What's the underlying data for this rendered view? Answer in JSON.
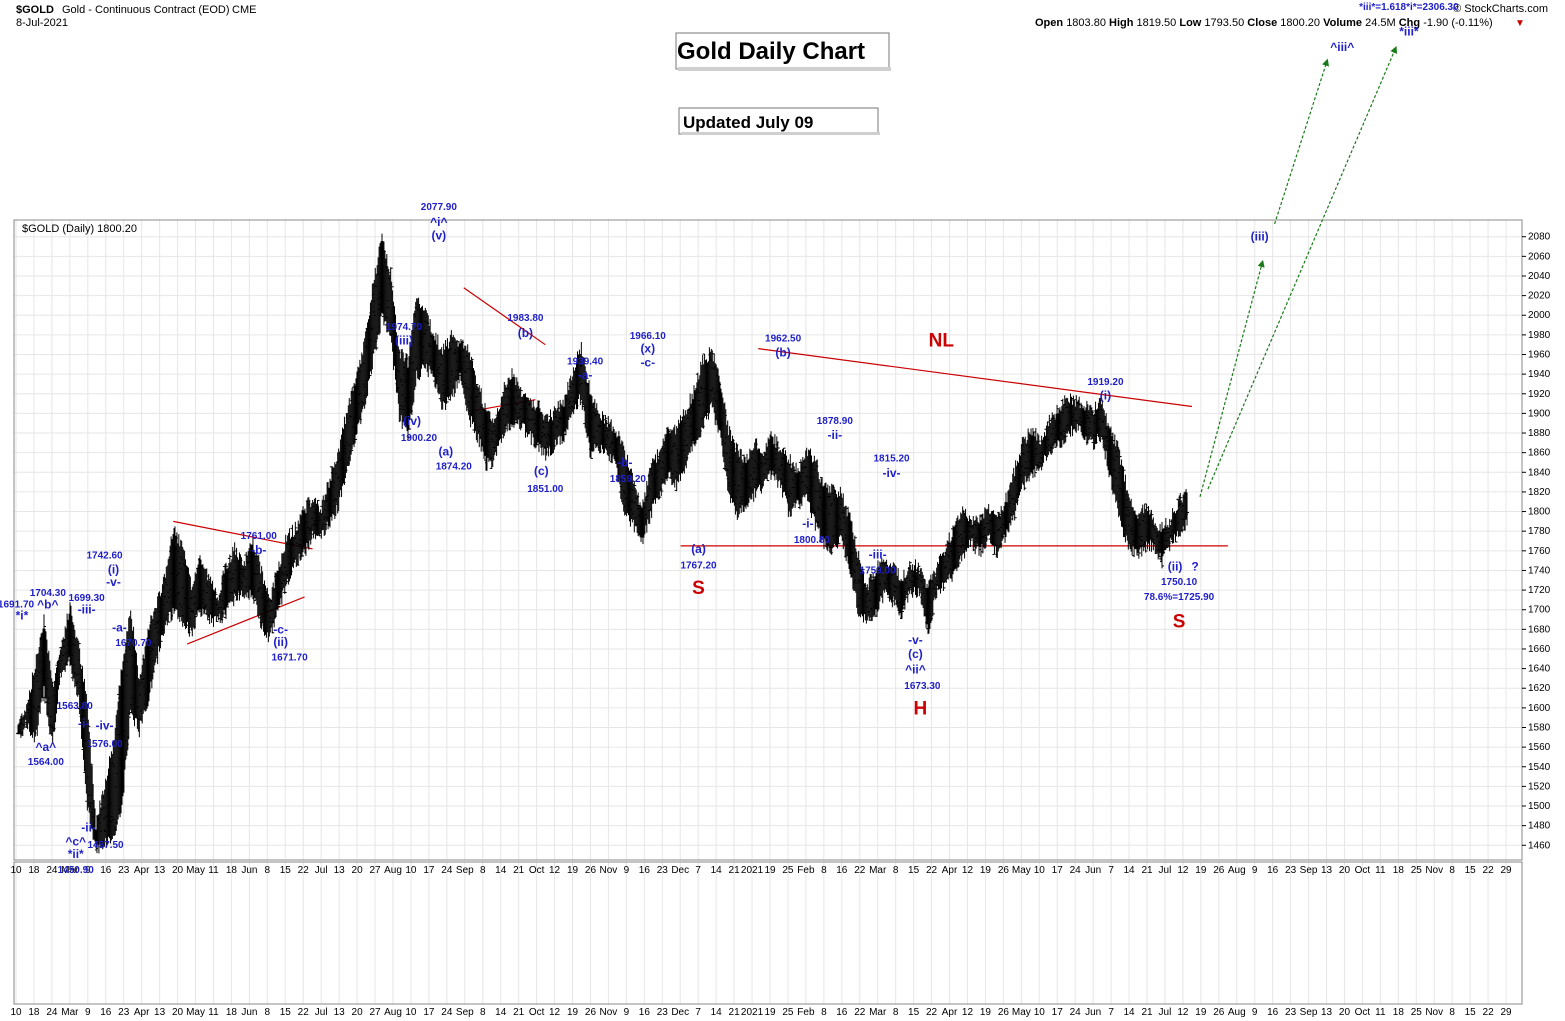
{
  "header": {
    "symbol": "$GOLD",
    "description": "Gold - Continuous Contract (EOD)",
    "exchange": "CME",
    "date": "8-Jul-2021",
    "watermark": "© StockCharts.com",
    "ohlc": [
      {
        "label": "Open",
        "value": "1803.80"
      },
      {
        "label": "High",
        "value": "1819.50"
      },
      {
        "label": "Low",
        "value": "1793.50"
      },
      {
        "label": "Close",
        "value": "1800.20"
      },
      {
        "label": "Volume",
        "value": "24.5M"
      },
      {
        "label": "Chg",
        "value": "-1.90 (-0.11%)"
      }
    ],
    "change_marker": "▼",
    "legend": "$GOLD (Daily) 1800.20"
  },
  "boxes": {
    "title": "Gold Daily Chart",
    "updated": "Updated July 09"
  },
  "colors": {
    "price": "#000000",
    "wave_label": "#1f1fc8",
    "trendline": "#cc0000",
    "projection": "#1a7a1a",
    "grid": "#e6e6e6"
  },
  "chart_data": {
    "type": "ohlc",
    "ylim": [
      1445,
      2095
    ],
    "y_ticks": [
      1460,
      1480,
      1500,
      1520,
      1540,
      1560,
      1580,
      1600,
      1620,
      1640,
      1660,
      1680,
      1700,
      1720,
      1740,
      1760,
      1780,
      1800,
      1820,
      1840,
      1860,
      1880,
      1900,
      1920,
      1940,
      1960,
      1980,
      2000,
      2020,
      2040,
      2060,
      2080
    ],
    "x_ticks": [
      "10",
      "18",
      "24",
      "Mar",
      "9",
      "16",
      "23",
      "Apr",
      "13",
      "20",
      "May",
      "11",
      "18",
      "Jun",
      "8",
      "15",
      "22",
      "Jul",
      "13",
      "20",
      "27",
      "Aug",
      "10",
      "17",
      "24",
      "Sep",
      "8",
      "14",
      "21",
      "Oct",
      "12",
      "19",
      "26",
      "Nov",
      "9",
      "16",
      "23",
      "Dec",
      "7",
      "14",
      "21",
      "2021",
      "19",
      "25",
      "Feb",
      "8",
      "16",
      "22",
      "Mar",
      "8",
      "15",
      "22",
      "Apr",
      "12",
      "19",
      "26",
      "May",
      "10",
      "17",
      "24",
      "Jun",
      "7",
      "14",
      "21",
      "Jul",
      "12",
      "19",
      "26",
      "Aug",
      "9",
      "16",
      "23",
      "Sep",
      "13",
      "20",
      "Oct",
      "11",
      "18",
      "25",
      "Nov",
      "8",
      "15",
      "22",
      "29"
    ],
    "price_path": [
      [
        1580,
        1575
      ],
      [
        1600,
        1585
      ],
      [
        1640,
        1570
      ],
      [
        1690,
        1620
      ],
      [
        1620,
        1565
      ],
      [
        1660,
        1640
      ],
      [
        1700,
        1650
      ],
      [
        1660,
        1610
      ],
      [
        1600,
        1500
      ],
      [
        1480,
        1460
      ],
      [
        1520,
        1465
      ],
      [
        1560,
        1470
      ],
      [
        1640,
        1500
      ],
      [
        1700,
        1600
      ],
      [
        1620,
        1580
      ],
      [
        1680,
        1610
      ],
      [
        1700,
        1650
      ],
      [
        1735,
        1690
      ],
      [
        1780,
        1700
      ],
      [
        1760,
        1690
      ],
      [
        1720,
        1680
      ],
      [
        1750,
        1700
      ],
      [
        1730,
        1695
      ],
      [
        1710,
        1690
      ],
      [
        1740,
        1700
      ],
      [
        1760,
        1715
      ],
      [
        1740,
        1720
      ],
      [
        1770,
        1720
      ],
      [
        1740,
        1690
      ],
      [
        1705,
        1675
      ],
      [
        1740,
        1700
      ],
      [
        1770,
        1730
      ],
      [
        1780,
        1750
      ],
      [
        1800,
        1760
      ],
      [
        1810,
        1780
      ],
      [
        1800,
        1780
      ],
      [
        1830,
        1790
      ],
      [
        1860,
        1810
      ],
      [
        1900,
        1850
      ],
      [
        1930,
        1880
      ],
      [
        1970,
        1910
      ],
      [
        2030,
        1960
      ],
      [
        2075,
        2000
      ],
      [
        2040,
        1980
      ],
      [
        1960,
        1900
      ],
      [
        1950,
        1880
      ],
      [
        2020,
        1940
      ],
      [
        2000,
        1950
      ],
      [
        1980,
        1940
      ],
      [
        1960,
        1910
      ],
      [
        1975,
        1920
      ],
      [
        1970,
        1940
      ],
      [
        1960,
        1900
      ],
      [
        1930,
        1880
      ],
      [
        1900,
        1850
      ],
      [
        1890,
        1855
      ],
      [
        1920,
        1880
      ],
      [
        1940,
        1890
      ],
      [
        1920,
        1890
      ],
      [
        1910,
        1880
      ],
      [
        1905,
        1870
      ],
      [
        1890,
        1860
      ],
      [
        1900,
        1870
      ],
      [
        1910,
        1880
      ],
      [
        1940,
        1900
      ],
      [
        1965,
        1920
      ],
      [
        1920,
        1860
      ],
      [
        1900,
        1870
      ],
      [
        1890,
        1860
      ],
      [
        1880,
        1850
      ],
      [
        1860,
        1800
      ],
      [
        1830,
        1790
      ],
      [
        1800,
        1770
      ],
      [
        1840,
        1800
      ],
      [
        1860,
        1820
      ],
      [
        1880,
        1840
      ],
      [
        1880,
        1830
      ],
      [
        1900,
        1850
      ],
      [
        1920,
        1870
      ],
      [
        1950,
        1890
      ],
      [
        1960,
        1910
      ],
      [
        1935,
        1880
      ],
      [
        1880,
        1820
      ],
      [
        1860,
        1800
      ],
      [
        1850,
        1810
      ],
      [
        1870,
        1820
      ],
      [
        1860,
        1830
      ],
      [
        1875,
        1840
      ],
      [
        1860,
        1830
      ],
      [
        1850,
        1800
      ],
      [
        1840,
        1810
      ],
      [
        1860,
        1820
      ],
      [
        1850,
        1790
      ],
      [
        1820,
        1770
      ],
      [
        1820,
        1760
      ],
      [
        1815,
        1780
      ],
      [
        1790,
        1740
      ],
      [
        1750,
        1700
      ],
      [
        1720,
        1690
      ],
      [
        1740,
        1700
      ],
      [
        1750,
        1720
      ],
      [
        1740,
        1710
      ],
      [
        1730,
        1700
      ],
      [
        1745,
        1720
      ],
      [
        1740,
        1720
      ],
      [
        1720,
        1680
      ],
      [
        1740,
        1720
      ],
      [
        1760,
        1730
      ],
      [
        1780,
        1740
      ],
      [
        1800,
        1760
      ],
      [
        1790,
        1770
      ],
      [
        1790,
        1760
      ],
      [
        1800,
        1775
      ],
      [
        1790,
        1760
      ],
      [
        1810,
        1780
      ],
      [
        1840,
        1800
      ],
      [
        1870,
        1830
      ],
      [
        1880,
        1840
      ],
      [
        1870,
        1850
      ],
      [
        1890,
        1860
      ],
      [
        1900,
        1870
      ],
      [
        1915,
        1880
      ],
      [
        1910,
        1890
      ],
      [
        1905,
        1880
      ],
      [
        1900,
        1870
      ],
      [
        1910,
        1880
      ],
      [
        1880,
        1840
      ],
      [
        1860,
        1800
      ],
      [
        1820,
        1770
      ],
      [
        1790,
        1760
      ],
      [
        1800,
        1765
      ],
      [
        1790,
        1770
      ],
      [
        1780,
        1750
      ],
      [
        1790,
        1770
      ],
      [
        1810,
        1780
      ],
      [
        1819,
        1793
      ]
    ],
    "annotations": [
      {
        "text": "1691.70",
        "x": 0.0,
        "y": 1702
      },
      {
        "text": "*i*",
        "x": 0.006,
        "y": 1690
      },
      {
        "text": "1704.30",
        "x": 0.032,
        "y": 1714
      },
      {
        "text": "^b^",
        "x": 0.032,
        "y": 1701
      },
      {
        "text": "1699.30",
        "x": 0.071,
        "y": 1709
      },
      {
        "text": "-iii-",
        "x": 0.071,
        "y": 1696
      },
      {
        "text": "1742.60",
        "x": 0.089,
        "y": 1752
      },
      {
        "text": "(i)",
        "x": 0.098,
        "y": 1737
      },
      {
        "text": "-v-",
        "x": 0.098,
        "y": 1724
      },
      {
        "text": "^a^",
        "x": 0.03,
        "y": 1556
      },
      {
        "text": "1564.00",
        "x": 0.03,
        "y": 1542
      },
      {
        "text": "1563.80",
        "x": 0.059,
        "y": 1599
      },
      {
        "text": "-i-",
        "x": 0.068,
        "y": 1580
      },
      {
        "text": "-iv-",
        "x": 0.089,
        "y": 1578
      },
      {
        "text": "1576.00",
        "x": 0.089,
        "y": 1560
      },
      {
        "text": "-ii-",
        "x": 0.073,
        "y": 1474
      },
      {
        "text": "^c^",
        "x": 0.06,
        "y": 1460
      },
      {
        "text": "1457.50",
        "x": 0.09,
        "y": 1457
      },
      {
        "text": "*ii*",
        "x": 0.06,
        "y": 1447
      },
      {
        "text": "1450.90",
        "x": 0.06,
        "y": 1432
      },
      {
        "text": "-a-",
        "x": 0.104,
        "y": 1678
      },
      {
        "text": "1670.70",
        "x": 0.118,
        "y": 1663
      },
      {
        "text": "1761.00",
        "x": 0.244,
        "y": 1772
      },
      {
        "text": "-b-",
        "x": 0.244,
        "y": 1757
      },
      {
        "text": "-c-",
        "x": 0.266,
        "y": 1676
      },
      {
        "text": "(ii)",
        "x": 0.266,
        "y": 1663
      },
      {
        "text": "1671.70",
        "x": 0.275,
        "y": 1648
      },
      {
        "text": "2077.90",
        "x": 0.425,
        "y": 2107
      },
      {
        "text": "^i^",
        "x": 0.425,
        "y": 2091
      },
      {
        "text": "(v)",
        "x": 0.425,
        "y": 2077
      },
      {
        "text": "1974.70",
        "x": 0.39,
        "y": 1985
      },
      {
        "text": "(iii)",
        "x": 0.39,
        "y": 1970
      },
      {
        "text": "(iv)",
        "x": 0.398,
        "y": 1888
      },
      {
        "text": "1900.20",
        "x": 0.405,
        "y": 1872
      },
      {
        "text": "(a)",
        "x": 0.432,
        "y": 1857
      },
      {
        "text": "1874.20",
        "x": 0.44,
        "y": 1843
      },
      {
        "text": "1983.80",
        "x": 0.512,
        "y": 1994
      },
      {
        "text": "(b)",
        "x": 0.512,
        "y": 1978
      },
      {
        "text": "(c)",
        "x": 0.528,
        "y": 1837
      },
      {
        "text": "1851.00",
        "x": 0.532,
        "y": 1820
      },
      {
        "text": "1939.40",
        "x": 0.572,
        "y": 1950
      },
      {
        "text": "-a-",
        "x": 0.572,
        "y": 1935
      },
      {
        "text": "1966.10",
        "x": 0.635,
        "y": 1976
      },
      {
        "text": "(x)",
        "x": 0.635,
        "y": 1962
      },
      {
        "text": "-c-",
        "x": 0.635,
        "y": 1948
      },
      {
        "text": "-b-",
        "x": 0.612,
        "y": 1846
      },
      {
        "text": "1859.20",
        "x": 0.615,
        "y": 1830
      },
      {
        "text": "(a)",
        "x": 0.686,
        "y": 1758
      },
      {
        "text": "1767.20",
        "x": 0.686,
        "y": 1742
      },
      {
        "text": "1962.50",
        "x": 0.771,
        "y": 1973
      },
      {
        "text": "(b)",
        "x": 0.771,
        "y": 1958
      },
      {
        "text": "1878.90",
        "x": 0.823,
        "y": 1889
      },
      {
        "text": "-ii-",
        "x": 0.823,
        "y": 1874
      },
      {
        "text": "-i-",
        "x": 0.796,
        "y": 1784
      },
      {
        "text": "1800.80",
        "x": 0.8,
        "y": 1768
      },
      {
        "text": "1815.20",
        "x": 0.88,
        "y": 1851
      },
      {
        "text": "-iv-",
        "x": 0.88,
        "y": 1835
      },
      {
        "text": "-iii-",
        "x": 0.866,
        "y": 1752
      },
      {
        "text": "1759.00",
        "x": 0.866,
        "y": 1737
      },
      {
        "text": "-v-",
        "x": 0.904,
        "y": 1665
      },
      {
        "text": "(c)",
        "x": 0.904,
        "y": 1651
      },
      {
        "text": "^ii^",
        "x": 0.904,
        "y": 1635
      },
      {
        "text": "1673.30",
        "x": 0.911,
        "y": 1619
      },
      {
        "text": "1919.20",
        "x": 1.095,
        "y": 1929
      },
      {
        "text": "(i)",
        "x": 1.095,
        "y": 1914
      },
      {
        "text": "(ii)",
        "x": 1.165,
        "y": 1740
      },
      {
        "text": "?",
        "x": 1.185,
        "y": 1740
      },
      {
        "text": "1750.10",
        "x": 1.169,
        "y": 1725
      },
      {
        "text": "78.6%=1725.90",
        "x": 1.169,
        "y": 1710
      },
      {
        "text": "(iii)",
        "x": 1.25,
        "y": 2076
      },
      {
        "text": "^iii^",
        "x": 1.333,
        "y": 2269
      },
      {
        "text": "*iii*",
        "x": 1.4,
        "y": 2285
      },
      {
        "text": "*iii*=1.618*i*=2306.30",
        "x": 1.4,
        "y": 2311
      }
    ],
    "pattern_labels": [
      {
        "text": "NL",
        "x": 0.93,
        "y": 1968
      },
      {
        "text": "S",
        "x": 0.686,
        "y": 1716
      },
      {
        "text": "H",
        "x": 0.909,
        "y": 1593
      },
      {
        "text": "S",
        "x": 1.169,
        "y": 1682
      }
    ],
    "trendlines": [
      {
        "name": "neckline-NL",
        "from": [
          0.746,
          1966
        ],
        "to": [
          1.182,
          1907
        ]
      },
      {
        "name": "neckline-support",
        "from": [
          0.668,
          1765
        ],
        "to": [
          1.218,
          1765
        ]
      },
      {
        "name": "triangle-1-top",
        "from": [
          0.158,
          1790
        ],
        "to": [
          0.298,
          1762
        ]
      },
      {
        "name": "triangle-1-bottom",
        "from": [
          0.172,
          1665
        ],
        "to": [
          0.29,
          1713
        ]
      },
      {
        "name": "triangle-2-top",
        "from": [
          0.45,
          2028
        ],
        "to": [
          0.532,
          1970
        ]
      },
      {
        "name": "triangle-2-bottom",
        "from": [
          0.462,
          1903
        ],
        "to": [
          0.522,
          1914
        ]
      }
    ],
    "projections": [
      {
        "name": "projection-iii",
        "from": [
          1.19,
          1815
        ],
        "to": [
          1.253,
          2055
        ]
      },
      {
        "name": "projection-big-iii",
        "from": [
          1.265,
          2093
        ],
        "to": [
          1.318,
          2260
        ]
      },
      {
        "name": "projection-star-iii",
        "from": [
          1.198,
          1823
        ],
        "to": [
          1.387,
          2273
        ]
      }
    ]
  }
}
